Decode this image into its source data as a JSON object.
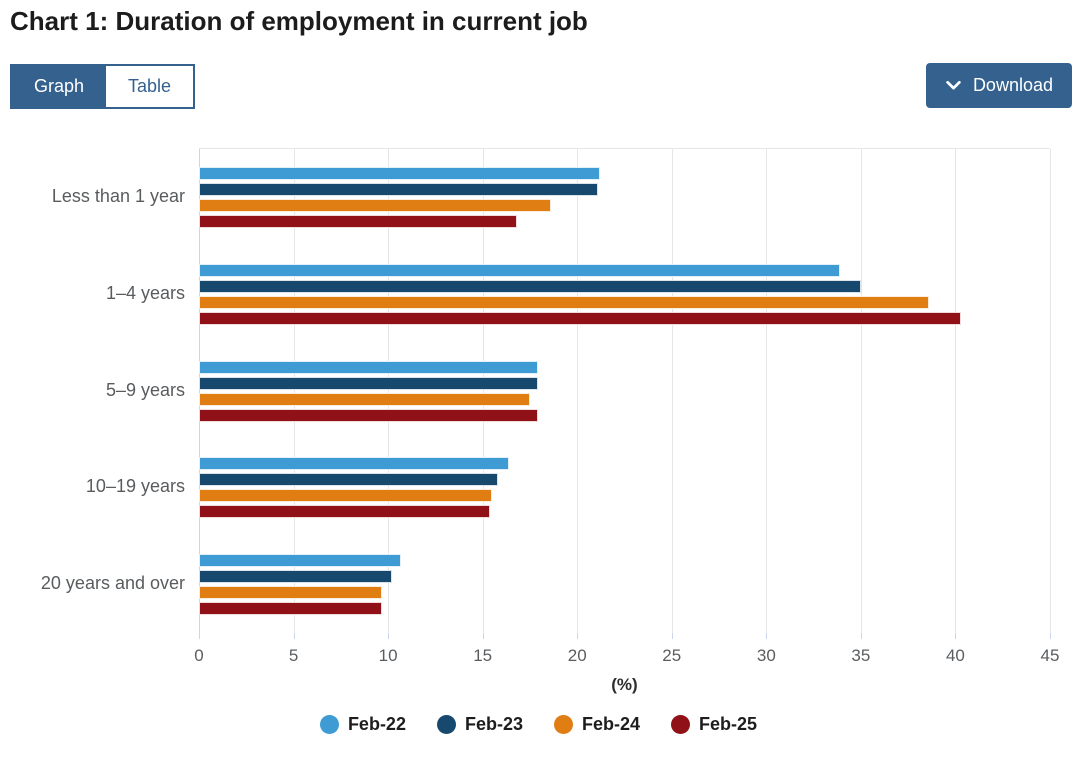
{
  "header": {
    "title": "Chart 1: Duration of employment in current job"
  },
  "toolbar": {
    "graph_tab": "Graph",
    "table_tab": "Table",
    "download_label": "Download"
  },
  "colors": {
    "accent_blue": "#35618F",
    "gridline": "#E6E6E6",
    "axis_line": "#CCD6EB",
    "label_gray": "#595C5E",
    "title_color": "#1C1C1C"
  },
  "chart_data": {
    "type": "bar",
    "orientation": "horizontal",
    "title": "Chart 1: Duration of employment in current job",
    "categories": [
      "Less than 1 year",
      "1–4 years",
      "5–9 years",
      "10–19 years",
      "20 years and over"
    ],
    "series": [
      {
        "name": "Feb-22",
        "color": "#3E9BD3",
        "values": [
          21.2,
          33.9,
          17.9,
          16.4,
          10.7
        ]
      },
      {
        "name": "Feb-23",
        "color": "#17496E",
        "values": [
          21.1,
          35.0,
          17.9,
          15.8,
          10.2
        ]
      },
      {
        "name": "Feb-24",
        "color": "#E07D13",
        "values": [
          18.6,
          38.6,
          17.5,
          15.5,
          9.7
        ]
      },
      {
        "name": "Feb-25",
        "color": "#911118",
        "values": [
          16.8,
          40.3,
          17.9,
          15.4,
          9.7
        ]
      }
    ],
    "xlabel": "(%)",
    "ylabel": "",
    "xlim": [
      0,
      45
    ],
    "xticks": [
      0,
      5,
      10,
      15,
      20,
      25,
      30,
      35,
      40,
      45
    ],
    "grid": true,
    "legend_position": "bottom"
  }
}
